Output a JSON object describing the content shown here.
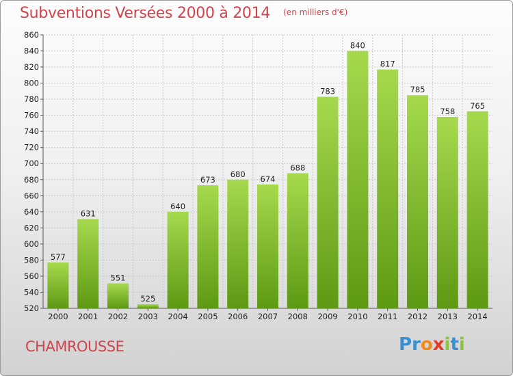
{
  "chart_data": {
    "type": "bar",
    "title": "Subventions Versées 2000 à 2014",
    "subtitle": "(en milliers d'€)",
    "categories": [
      "2000",
      "2001",
      "2002",
      "2003",
      "2004",
      "2005",
      "2006",
      "2007",
      "2008",
      "2009",
      "2010",
      "2011",
      "2012",
      "2013",
      "2014"
    ],
    "values": [
      577,
      631,
      551,
      525,
      640,
      673,
      680,
      674,
      688,
      783,
      840,
      817,
      785,
      758,
      765
    ],
    "ylim": [
      520,
      860
    ],
    "yticks": [
      520,
      540,
      560,
      580,
      600,
      620,
      640,
      660,
      680,
      700,
      720,
      740,
      760,
      780,
      800,
      820,
      840,
      860
    ],
    "grid": true,
    "bar_color_light": "#a6d94e",
    "bar_color_dark": "#5e9914"
  },
  "footer": {
    "commune": "CHAMROUSSE",
    "logo_letters": [
      {
        "ch": "P",
        "color": "#3a8fd0"
      },
      {
        "ch": "r",
        "color": "#3a8fd0"
      },
      {
        "ch": "o",
        "color": "#f08a1c"
      },
      {
        "ch": "x",
        "color": "#e43a2a"
      },
      {
        "ch": "i",
        "color": "#8cc43c"
      },
      {
        "ch": "t",
        "color": "#3a8fd0"
      },
      {
        "ch": "i",
        "color": "#8cc43c"
      }
    ]
  }
}
